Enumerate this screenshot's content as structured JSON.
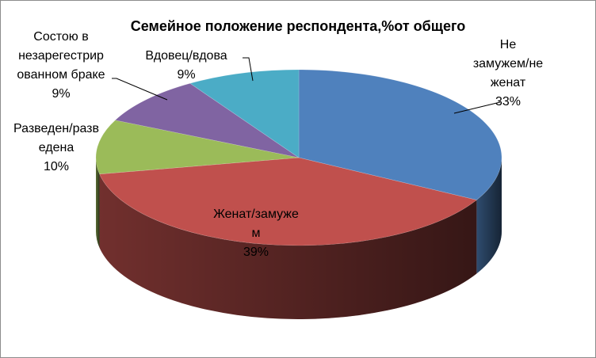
{
  "chart_data": {
    "type": "pie",
    "title": "Семейное положение респондента,%от общего",
    "slices": [
      {
        "label_lines": [
          "Не",
          "замужем/не",
          "женат"
        ],
        "percent_text": "33%",
        "value": 33,
        "color": "#4f81bd"
      },
      {
        "label_lines": [
          "Женат/замуже",
          "м"
        ],
        "percent_text": "39%",
        "value": 39,
        "color": "#c0504d"
      },
      {
        "label_lines": [
          "Разведен/разв",
          "едена"
        ],
        "percent_text": "10%",
        "value": 10,
        "color": "#9bbb59"
      },
      {
        "label_lines": [
          "Состою в",
          "незарегестрир",
          "ованном браке"
        ],
        "percent_text": "9%",
        "value": 9,
        "color": "#8064a2"
      },
      {
        "label_lines": [
          "Вдовец/вдова"
        ],
        "percent_text": "9%",
        "value": 9,
        "color": "#4bacc6"
      }
    ]
  }
}
